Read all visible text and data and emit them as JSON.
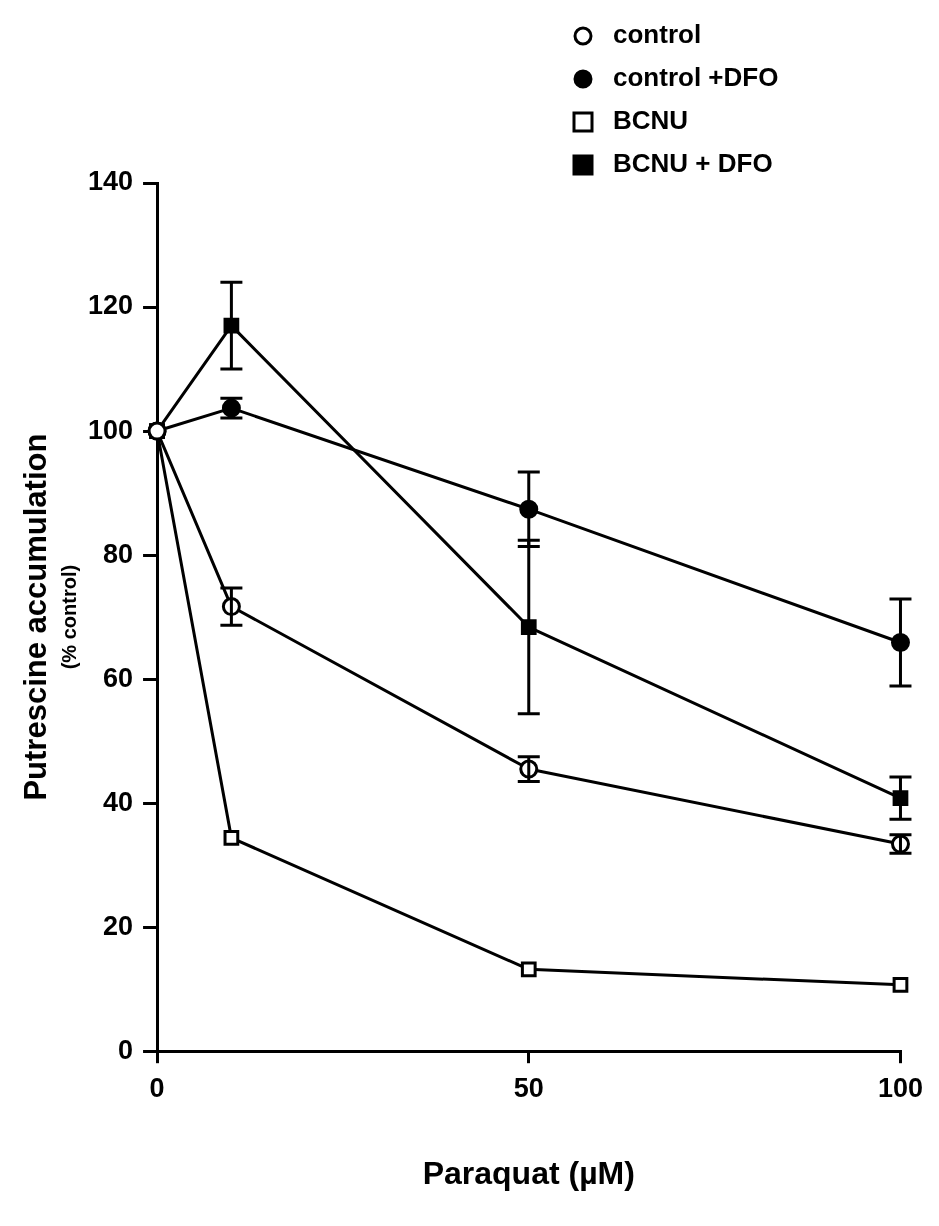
{
  "chart_data": {
    "type": "line",
    "xlabel": "Paraquat (µM)",
    "ylabel": "Putrescine accumulation\n(% control)",
    "xlim": [
      0,
      100
    ],
    "xticks": [
      0,
      50,
      100
    ],
    "ylim": [
      0,
      140
    ],
    "yticks": [
      0,
      20,
      40,
      60,
      80,
      100,
      120,
      140
    ],
    "grid": false,
    "legend": "top right",
    "line_style": "solid",
    "series": [
      {
        "name": "control",
        "color": "#000000",
        "marker": "circle",
        "colors": [
          "#ffffff",
          "#ffffff",
          "#ffffff",
          "#ffffff"
        ],
        "x": [
          0,
          10,
          50,
          100
        ],
        "values": [
          100,
          71.7,
          45.5,
          33.4
        ],
        "errors": [
          null,
          3,
          2,
          1.5
        ]
      },
      {
        "name": "control +DFO",
        "color": "#000000",
        "marker": "circle",
        "colors": [
          "#000000",
          "#000000",
          "#000000",
          "#000000"
        ],
        "x": [
          0,
          10,
          50,
          100
        ],
        "values": [
          100,
          103.7,
          87.4,
          65.9
        ],
        "errors": [
          null,
          1.6,
          6,
          7
        ]
      },
      {
        "name": "BCNU",
        "color": "#000000",
        "marker": "square",
        "colors": [
          "#ffffff",
          "#ffffff",
          "#ffffff",
          "#ffffff"
        ],
        "x": [
          0,
          10,
          50,
          100
        ],
        "values": [
          100,
          34.4,
          13.2,
          10.7
        ]
      },
      {
        "name": "BCNU + DFO",
        "color": "#000000",
        "marker": "square",
        "colors": [
          "#000000",
          "#000000",
          "#000000",
          "#000000"
        ],
        "x": [
          0,
          10,
          50,
          100
        ],
        "values": [
          100,
          117,
          68.4,
          40.8
        ],
        "errors": [
          null,
          7,
          14,
          3.4
        ]
      }
    ]
  }
}
